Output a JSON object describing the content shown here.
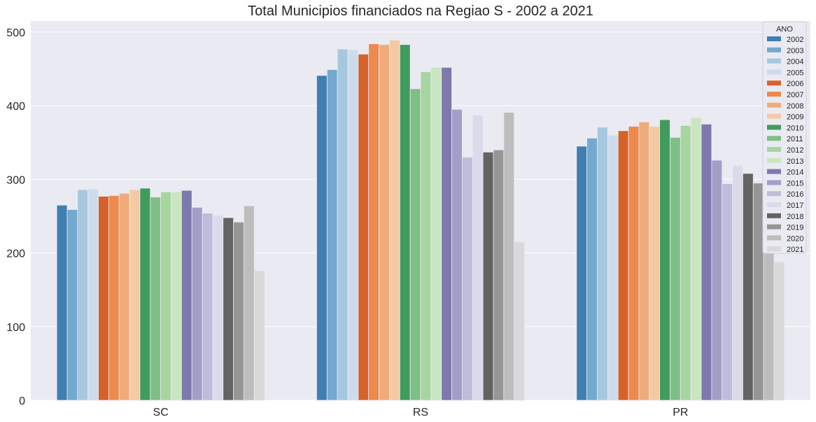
{
  "chart_data": {
    "type": "bar",
    "title": "Total Municipios financiados na Regiao S - 2002 a 2021",
    "xlabel": "",
    "ylabel": "",
    "ylim": [
      0,
      515
    ],
    "yticks": [
      0,
      100,
      200,
      300,
      400,
      500
    ],
    "grid": true,
    "legend": {
      "title": "ANO",
      "placement": "top-right"
    },
    "categories": [
      "SC",
      "RS",
      "PR"
    ],
    "series": [
      {
        "name": "2002",
        "color": "#3f7fb1",
        "values": [
          265,
          441,
          345
        ]
      },
      {
        "name": "2003",
        "color": "#74a9cf",
        "values": [
          259,
          449,
          356
        ]
      },
      {
        "name": "2004",
        "color": "#a6c8df",
        "values": [
          286,
          477,
          371
        ]
      },
      {
        "name": "2005",
        "color": "#ccdcec",
        "values": [
          287,
          476,
          360
        ]
      },
      {
        "name": "2006",
        "color": "#d6622a",
        "values": [
          277,
          470,
          366
        ]
      },
      {
        "name": "2007",
        "color": "#eb8a4c",
        "values": [
          278,
          484,
          372
        ]
      },
      {
        "name": "2008",
        "color": "#f0ab7a",
        "values": [
          281,
          483,
          378
        ]
      },
      {
        "name": "2009",
        "color": "#f4caa4",
        "values": [
          286,
          489,
          372
        ]
      },
      {
        "name": "2010",
        "color": "#3f9c5c",
        "values": [
          288,
          483,
          381
        ]
      },
      {
        "name": "2011",
        "color": "#7fbf85",
        "values": [
          276,
          423,
          357
        ]
      },
      {
        "name": "2012",
        "color": "#a7d5a0",
        "values": [
          283,
          446,
          373
        ]
      },
      {
        "name": "2013",
        "color": "#c9e6c1",
        "values": [
          283,
          452,
          384
        ]
      },
      {
        "name": "2014",
        "color": "#7d79ad",
        "values": [
          285,
          452,
          375
        ]
      },
      {
        "name": "2015",
        "color": "#a29ec8",
        "values": [
          262,
          395,
          326
        ]
      },
      {
        "name": "2016",
        "color": "#bdbcda",
        "values": [
          254,
          330,
          294
        ]
      },
      {
        "name": "2017",
        "color": "#dadaeb",
        "values": [
          251,
          387,
          319
        ]
      },
      {
        "name": "2018",
        "color": "#636363",
        "values": [
          248,
          337,
          308
        ]
      },
      {
        "name": "2019",
        "color": "#969696",
        "values": [
          242,
          340,
          295
        ]
      },
      {
        "name": "2020",
        "color": "#bdbdbd",
        "values": [
          264,
          391,
          299
        ]
      },
      {
        "name": "2021",
        "color": "#d9d9d9",
        "values": [
          176,
          215,
          188
        ]
      }
    ]
  }
}
